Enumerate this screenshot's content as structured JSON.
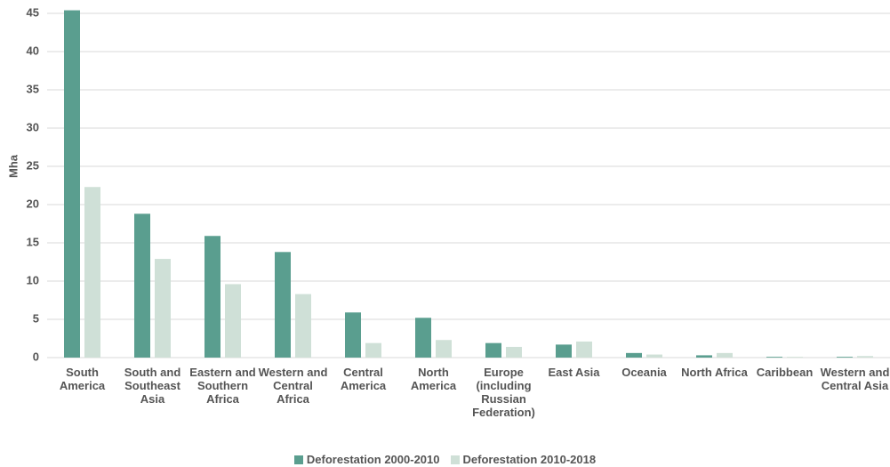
{
  "chart_data": {
    "type": "bar",
    "y_label": "Mha",
    "categories": [
      "South America",
      "South and Southeast Asia",
      "Eastern and Southern Africa",
      "Western and Central Africa",
      "Central America",
      "North America",
      "Europe (including Russian Federation)",
      "East Asia",
      "Oceania",
      "North Africa",
      "Caribbean",
      "Western and Central Asia"
    ],
    "series": [
      {
        "name": "Deforestation 2000-2010",
        "color": "#5a9e8f",
        "values": [
          45.4,
          18.8,
          15.9,
          13.8,
          5.9,
          5.2,
          1.9,
          1.7,
          0.6,
          0.3,
          0.1,
          0.1
        ]
      },
      {
        "name": "Deforestation 2010-2018",
        "color": "#cfe0d7",
        "values": [
          22.3,
          12.9,
          9.6,
          8.3,
          1.9,
          2.3,
          1.4,
          2.1,
          0.4,
          0.6,
          0.1,
          0.2
        ]
      }
    ],
    "ylim": [
      0,
      45
    ],
    "yticks": [
      0,
      5,
      10,
      15,
      20,
      25,
      30,
      35,
      40,
      45
    ],
    "grid": true,
    "legend": "bottom"
  }
}
